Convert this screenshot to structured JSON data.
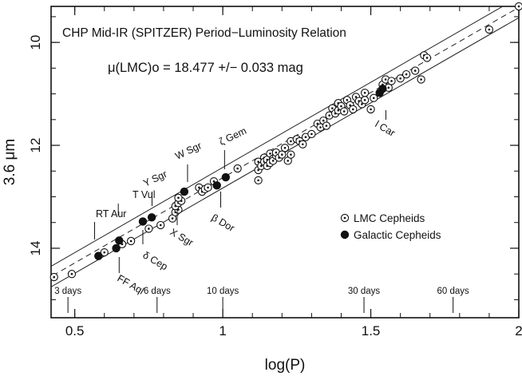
{
  "chart_data": {
    "type": "scatter",
    "title": "CHP Mid-IR (SPITZER) Period−Luminosity Relation",
    "subtitle": "μ(LMC)o = 18.477 +/− 0.033 mag",
    "xlabel": "log(P)",
    "ylabel": "3.6 μm",
    "xlim": [
      0.42,
      2.0
    ],
    "ylim": [
      9.3,
      15.35
    ],
    "y_inverted": true,
    "x_ticks": [
      0.5,
      1,
      1.5,
      2
    ],
    "x_tick_labels": [
      "0.5",
      "1",
      "1.5",
      "2"
    ],
    "y_ticks": [
      10,
      12,
      14
    ],
    "y_tick_labels": [
      "10",
      "12",
      "14"
    ],
    "relation": {
      "slope": -3.31,
      "intercept": 15.94,
      "width": 0.2
    },
    "period_markers": [
      {
        "label": "3 days",
        "logp": 0.477
      },
      {
        "label": "6 days",
        "logp": 0.778
      },
      {
        "label": "10 days",
        "logp": 1.0
      },
      {
        "label": "30 days",
        "logp": 1.477
      },
      {
        "label": "60 days",
        "logp": 1.778
      }
    ],
    "series": [
      {
        "name": "LMC Cepheids",
        "marker": "dotted-circle",
        "points": [
          [
            0.43,
            14.56
          ],
          [
            0.49,
            14.5
          ],
          [
            0.58,
            14.15
          ],
          [
            0.6,
            14.08
          ],
          [
            0.66,
            13.92
          ],
          [
            0.69,
            13.86
          ],
          [
            0.75,
            13.62
          ],
          [
            0.79,
            13.55
          ],
          [
            0.83,
            13.42
          ],
          [
            0.84,
            13.3
          ],
          [
            0.85,
            13.25
          ],
          [
            0.84,
            13.18
          ],
          [
            0.85,
            13.12
          ],
          [
            0.86,
            13.08
          ],
          [
            0.85,
            13.02
          ],
          [
            0.92,
            12.82
          ],
          [
            0.93,
            12.9
          ],
          [
            0.94,
            12.85
          ],
          [
            0.95,
            12.82
          ],
          [
            0.97,
            12.7
          ],
          [
            1.05,
            12.45
          ],
          [
            1.12,
            12.68
          ],
          [
            1.12,
            12.48
          ],
          [
            1.12,
            12.32
          ],
          [
            1.13,
            12.4
          ],
          [
            1.14,
            12.24
          ],
          [
            1.14,
            12.32
          ],
          [
            1.15,
            12.28
          ],
          [
            1.15,
            12.4
          ],
          [
            1.16,
            12.16
          ],
          [
            1.16,
            12.34
          ],
          [
            1.17,
            12.26
          ],
          [
            1.17,
            12.3
          ],
          [
            1.18,
            12.2
          ],
          [
            1.18,
            12.14
          ],
          [
            1.19,
            12.24
          ],
          [
            1.2,
            12.18
          ],
          [
            1.21,
            12.05
          ],
          [
            1.22,
            12.3
          ],
          [
            1.23,
            12.18
          ],
          [
            1.23,
            11.92
          ],
          [
            1.25,
            11.88
          ],
          [
            1.26,
            11.92
          ],
          [
            1.27,
            11.98
          ],
          [
            1.28,
            11.84
          ],
          [
            1.3,
            11.78
          ],
          [
            1.32,
            11.58
          ],
          [
            1.33,
            11.65
          ],
          [
            1.34,
            11.52
          ],
          [
            1.35,
            11.62
          ],
          [
            1.36,
            11.42
          ],
          [
            1.37,
            11.28
          ],
          [
            1.38,
            11.38
          ],
          [
            1.39,
            11.18
          ],
          [
            1.39,
            11.32
          ],
          [
            1.4,
            11.24
          ],
          [
            1.41,
            11.34
          ],
          [
            1.42,
            11.12
          ],
          [
            1.43,
            11.22
          ],
          [
            1.44,
            11.3
          ],
          [
            1.45,
            11.06
          ],
          [
            1.46,
            11.14
          ],
          [
            1.47,
            11.2
          ],
          [
            1.48,
            11.12
          ],
          [
            1.48,
            10.98
          ],
          [
            1.5,
            11.3
          ],
          [
            1.51,
            11.08
          ],
          [
            1.54,
            10.82
          ],
          [
            1.55,
            10.72
          ],
          [
            1.56,
            10.88
          ],
          [
            1.57,
            10.75
          ],
          [
            1.6,
            10.7
          ],
          [
            1.62,
            10.62
          ],
          [
            1.65,
            10.55
          ],
          [
            1.67,
            10.72
          ],
          [
            1.68,
            10.25
          ],
          [
            1.69,
            10.3
          ],
          [
            1.9,
            9.75
          ],
          [
            2.0,
            9.3
          ]
        ]
      },
      {
        "name": "Galactic Cepheids",
        "marker": "filled-circle",
        "points": [
          [
            0.58,
            14.15
          ],
          [
            0.64,
            14.0
          ],
          [
            0.65,
            13.85
          ],
          [
            0.73,
            13.48
          ],
          [
            0.76,
            13.4
          ],
          [
            0.87,
            12.9
          ],
          [
            0.98,
            12.78
          ],
          [
            1.01,
            12.62
          ],
          [
            1.53,
            10.98
          ],
          [
            1.54,
            10.9
          ]
        ]
      }
    ],
    "annotations": [
      {
        "text": "RT Aur",
        "logp": 0.567
      },
      {
        "text": "T Vul",
        "logp": 0.647
      },
      {
        "text": "FF Aql",
        "logp": 0.65
      },
      {
        "text": "Y Sgr",
        "logp": 0.761
      },
      {
        "text": "δ Cep",
        "logp": 0.73
      },
      {
        "text": "X Sgr",
        "logp": 0.846
      },
      {
        "text": "W Sgr",
        "logp": 0.881
      },
      {
        "text": "β Dor",
        "logp": 0.993
      },
      {
        "text": "ζ Gem",
        "logp": 1.006
      },
      {
        "text": "l Car",
        "logp": 1.551
      }
    ],
    "legend": {
      "position": "bottom-right",
      "entries": [
        "LMC Cepheids",
        "Galactic Cepheids"
      ]
    }
  }
}
